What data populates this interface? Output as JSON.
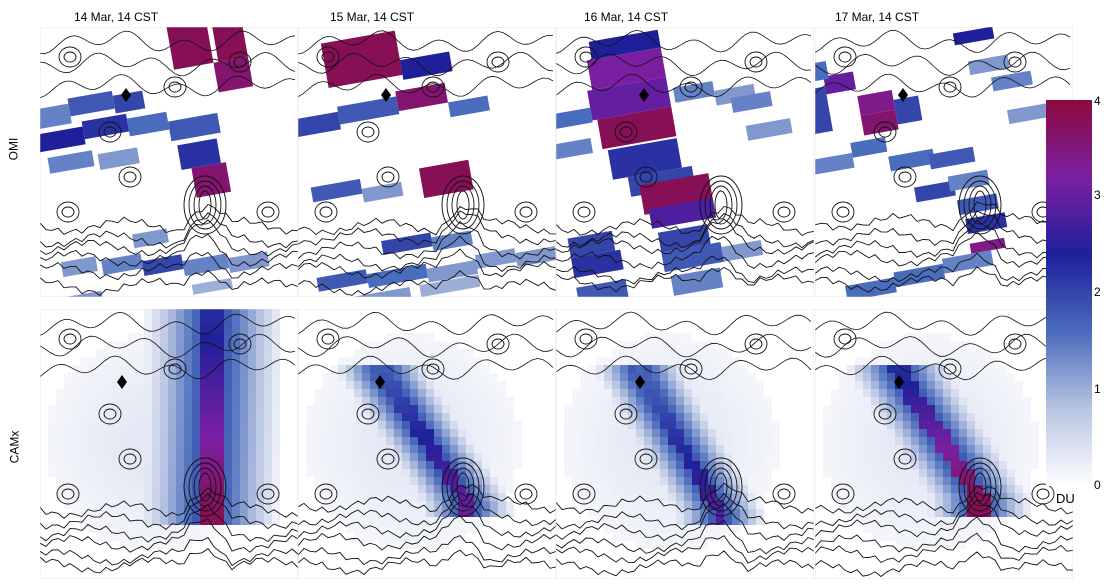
{
  "columns": [
    {
      "title": "14 Mar, 14 CST"
    },
    {
      "title": "15 Mar, 14 CST"
    },
    {
      "title": "16 Mar, 14 CST"
    },
    {
      "title": "17 Mar, 14 CST"
    }
  ],
  "rows": [
    {
      "label": "OMI"
    },
    {
      "label": "CAMx"
    }
  ],
  "colorbar": {
    "unit": "DU",
    "ticks": [
      "0",
      "1",
      "2",
      "3",
      "4"
    ],
    "stops": [
      "#ffffff",
      "#b8c4e2",
      "#4a6cbc",
      "#1f1f9a",
      "#7b1fa2",
      "#8b0a3c"
    ]
  },
  "marker_icon": "diamond-marker-icon"
}
